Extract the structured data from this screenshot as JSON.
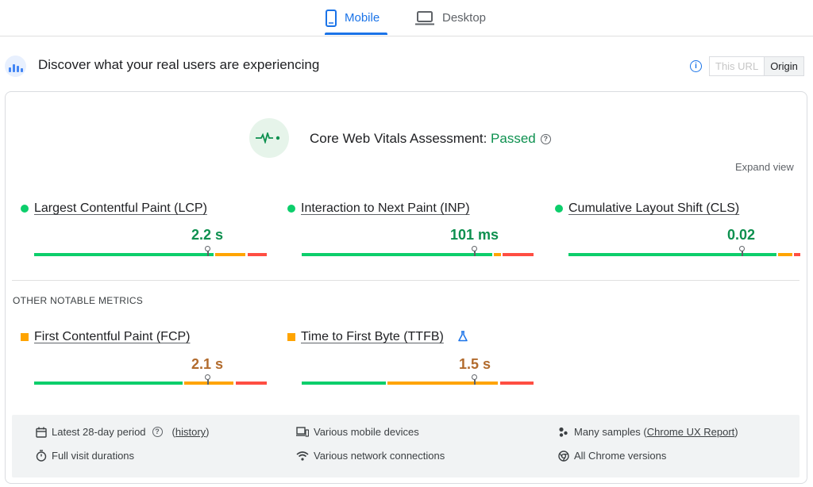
{
  "tabs": {
    "mobile": "Mobile",
    "desktop": "Desktop"
  },
  "header": {
    "title": "Discover what your real users are experiencing"
  },
  "url_toggle": {
    "this_url": "This URL",
    "origin": "Origin"
  },
  "assessment": {
    "label": "Core Web Vitals Assessment:",
    "status": "Passed",
    "expand": "Expand view"
  },
  "core_metrics": [
    {
      "name": "Largest Contentful Paint (LCP)",
      "value": "2.2 s"
    },
    {
      "name": "Interaction to Next Paint (INP)",
      "value": "101 ms"
    },
    {
      "name": "Cumulative Layout Shift (CLS)",
      "value": "0.02"
    }
  ],
  "other": {
    "title": "OTHER NOTABLE METRICS",
    "metrics": [
      {
        "name": "First Contentful Paint (FCP)",
        "value": "2.1 s"
      },
      {
        "name": "Time to First Byte (TTFB)",
        "value": "1.5 s"
      }
    ]
  },
  "footer": {
    "period": "Latest 28-day period",
    "history": "history",
    "durations": "Full visit durations",
    "devices": "Various mobile devices",
    "network": "Various network connections",
    "samples_prefix": "Many samples (",
    "samples_link": "Chrome UX Report",
    "samples_suffix": ")",
    "chrome": "All Chrome versions"
  },
  "colors": {
    "good": "#0cce6b",
    "needs_improvement": "#ffa400",
    "poor": "#ff4e42",
    "accent": "#1a73e8"
  }
}
